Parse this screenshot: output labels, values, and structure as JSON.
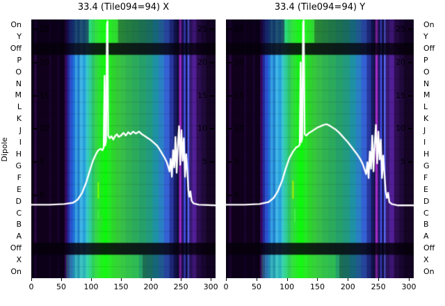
{
  "colors": {
    "background": "#ffffff",
    "text": "#000000",
    "overlay_line": "#ffffff"
  },
  "axes": {
    "ylabel": "Dipole",
    "dipole_labels": [
      "On",
      "Y",
      "Off",
      "P",
      "O",
      "N",
      "M",
      "L",
      "K",
      "J",
      "I",
      "H",
      "G",
      "F",
      "E",
      "D",
      "C",
      "B",
      "A",
      "Off",
      "X",
      "On"
    ],
    "x_ticks": [
      0,
      50,
      100,
      150,
      200,
      250,
      300
    ],
    "amp_ticks": [
      25,
      20,
      15,
      10,
      5,
      0
    ],
    "amp_ticks_right": [
      25,
      20,
      15,
      10,
      5
    ],
    "x_range": [
      0,
      308
    ],
    "amp_axis_range": [
      -12.5,
      26.5
    ]
  },
  "chart_data": [
    {
      "type": "heatmap",
      "title": "33.4 (Tile094=94) X",
      "rows": [
        "On",
        "Y",
        "Off",
        "P",
        "O",
        "N",
        "M",
        "L",
        "K",
        "J",
        "I",
        "H",
        "G",
        "F",
        "E",
        "D",
        "C",
        "B",
        "A",
        "Off",
        "X",
        "On"
      ],
      "x_ticks": [
        0,
        50,
        100,
        150,
        200,
        250,
        300
      ],
      "value_ticks": [
        25,
        20,
        15,
        10,
        5,
        0
      ],
      "off_rows": [
        2,
        19
      ],
      "colormap_columns": [
        [
          0,
          5,
          "#0d0016"
        ],
        [
          5,
          9,
          "#2a0742"
        ],
        [
          9,
          30,
          "#10001c"
        ],
        [
          30,
          33,
          "#1c0430"
        ],
        [
          33,
          44,
          "#10001c"
        ],
        [
          44,
          47,
          "#1a0430"
        ],
        [
          47,
          56,
          "#0e001a"
        ],
        [
          56,
          60,
          "#35075e"
        ],
        [
          60,
          64,
          "#232a9a"
        ],
        [
          64,
          69,
          "#2b50cc"
        ],
        [
          69,
          73,
          "#1f70d8"
        ],
        [
          73,
          77,
          "#38a0e0"
        ],
        [
          77,
          81,
          "#2080d0"
        ],
        [
          81,
          86,
          "#40b4e4"
        ],
        [
          86,
          91,
          "#28a0dc"
        ],
        [
          91,
          96,
          "#38c8c8"
        ],
        [
          96,
          101,
          "#30cc9a"
        ],
        [
          101,
          106,
          "#2cc468"
        ],
        [
          106,
          111,
          "#34d648"
        ],
        [
          111,
          116,
          "#28e430"
        ],
        [
          116,
          121,
          "#18ee18"
        ],
        [
          121,
          127,
          "#0cf60c"
        ],
        [
          127,
          134,
          "#22e822"
        ],
        [
          134,
          141,
          "#2cd42c"
        ],
        [
          141,
          149,
          "#34c83a"
        ],
        [
          149,
          158,
          "#36bc48"
        ],
        [
          158,
          168,
          "#30b252"
        ],
        [
          168,
          180,
          "#2caa5c"
        ],
        [
          180,
          192,
          "#26a06a"
        ],
        [
          192,
          203,
          "#229a80"
        ],
        [
          203,
          213,
          "#1e92a4"
        ],
        [
          213,
          222,
          "#2a80c4"
        ],
        [
          222,
          231,
          "#3462d4"
        ],
        [
          231,
          238,
          "#2838a0"
        ],
        [
          238,
          243,
          "#161a60"
        ],
        [
          243,
          247,
          "#0e0e3e"
        ],
        [
          247,
          251,
          "#9c28c0"
        ],
        [
          251,
          255,
          "#241668"
        ],
        [
          255,
          258,
          "#4452e8"
        ],
        [
          258,
          261,
          "#120e46"
        ],
        [
          261,
          264,
          "#5866f0"
        ],
        [
          264,
          269,
          "#381a74"
        ],
        [
          269,
          276,
          "#521f96"
        ],
        [
          276,
          284,
          "#2e0d52"
        ],
        [
          284,
          292,
          "#200a3c"
        ],
        [
          292,
          308,
          "#150424"
        ]
      ],
      "dim_overlays": [
        {
          "rows": [
            0,
            1
          ],
          "alpha": 0.55,
          "x_ranges": [
            [
              0,
              96
            ]
          ]
        },
        {
          "rows": [
            0,
            1
          ],
          "alpha": 0.3,
          "x_ranges": [
            [
              145,
              308
            ]
          ]
        },
        {
          "rows": [
            20,
            21
          ],
          "alpha": 0.5,
          "x_ranges": [
            [
              0,
              55
            ]
          ]
        },
        {
          "rows": [
            20,
            21
          ],
          "alpha": 0.3,
          "x_ranges": [
            [
              186,
              308
            ]
          ]
        }
      ],
      "bright_overlays": [
        {
          "rows": [
            0,
            1
          ],
          "color": "rgba(40,255,40,0.25)",
          "x_ranges": [
            [
              96,
              145
            ]
          ]
        },
        {
          "rows": [
            20,
            21
          ],
          "color": "rgba(60,255,50,0.20)",
          "x_ranges": [
            [
              58,
              180
            ]
          ]
        }
      ],
      "green_marks": [
        [
          112,
          -0.5,
          2.0,
          "#7fff00"
        ],
        [
          112,
          -3.6,
          -2.2,
          "#44ee44"
        ],
        [
          117,
          -4.6,
          -3.0,
          "#33dd33"
        ]
      ],
      "overlay_line": {
        "name": "bandpass amplitude X",
        "color": "#ffffff",
        "points": [
          [
            0,
            -1.4
          ],
          [
            30,
            -1.4
          ],
          [
            55,
            -1.3
          ],
          [
            70,
            -1.1
          ],
          [
            78,
            -0.6
          ],
          [
            85,
            0.4
          ],
          [
            92,
            2.0
          ],
          [
            98,
            3.8
          ],
          [
            103,
            5.2
          ],
          [
            108,
            6.2
          ],
          [
            112,
            6.8
          ],
          [
            116,
            7.0
          ],
          [
            119,
            6.8
          ],
          [
            121,
            7.2
          ],
          [
            122.5,
            18.0
          ],
          [
            123.5,
            7.5
          ],
          [
            125,
            8.2
          ],
          [
            126.5,
            25.8
          ],
          [
            127.5,
            26.2
          ],
          [
            128.5,
            9.0
          ],
          [
            131,
            8.6
          ],
          [
            134,
            8.9
          ],
          [
            137,
            8.4
          ],
          [
            140,
            8.9
          ],
          [
            143,
            9.2
          ],
          [
            146,
            8.8
          ],
          [
            150,
            9.0
          ],
          [
            154,
            9.4
          ],
          [
            158,
            9.0
          ],
          [
            162,
            9.5
          ],
          [
            166,
            9.2
          ],
          [
            170,
            9.6
          ],
          [
            175,
            9.3
          ],
          [
            180,
            9.6
          ],
          [
            185,
            9.2
          ],
          [
            190,
            8.9
          ],
          [
            195,
            8.6
          ],
          [
            200,
            8.3
          ],
          [
            205,
            7.9
          ],
          [
            210,
            7.5
          ],
          [
            214,
            7.0
          ],
          [
            218,
            6.4
          ],
          [
            222,
            5.8
          ],
          [
            226,
            5.1
          ],
          [
            229,
            4.3
          ],
          [
            231,
            3.6
          ],
          [
            233,
            5.5
          ],
          [
            235,
            2.8
          ],
          [
            237,
            6.8
          ],
          [
            239,
            4.2
          ],
          [
            241,
            8.8
          ],
          [
            243,
            3.4
          ],
          [
            245,
            7.6
          ],
          [
            247,
            10.4
          ],
          [
            249,
            4.6
          ],
          [
            251,
            9.8
          ],
          [
            253,
            5.2
          ],
          [
            255,
            8.6
          ],
          [
            257,
            2.8
          ],
          [
            259,
            6.2
          ],
          [
            261,
            3.4
          ],
          [
            262.5,
            0.8
          ],
          [
            264,
            -0.2
          ],
          [
            266,
            0.6
          ],
          [
            268,
            -0.8
          ],
          [
            271,
            -1.2
          ],
          [
            280,
            -1.4
          ],
          [
            308,
            -1.5
          ]
        ]
      }
    },
    {
      "type": "heatmap",
      "title": "33.4 (Tile094=94) Y",
      "rows": [
        "On",
        "Y",
        "Off",
        "P",
        "O",
        "N",
        "M",
        "L",
        "K",
        "J",
        "I",
        "H",
        "G",
        "F",
        "E",
        "D",
        "C",
        "B",
        "A",
        "Off",
        "X",
        "On"
      ],
      "x_ticks": [
        0,
        50,
        100,
        150,
        200,
        250,
        300
      ],
      "value_ticks": [
        25,
        20,
        15,
        10,
        5,
        0
      ],
      "off_rows": [
        2,
        19
      ],
      "colormap_columns": [
        [
          0,
          5,
          "#0d0016"
        ],
        [
          5,
          9,
          "#2a0742"
        ],
        [
          9,
          30,
          "#10001c"
        ],
        [
          30,
          33,
          "#1c0430"
        ],
        [
          33,
          44,
          "#10001c"
        ],
        [
          44,
          47,
          "#1a0430"
        ],
        [
          47,
          56,
          "#0e001a"
        ],
        [
          56,
          60,
          "#35075e"
        ],
        [
          60,
          64,
          "#232a9a"
        ],
        [
          64,
          69,
          "#2b50cc"
        ],
        [
          69,
          73,
          "#1f70d8"
        ],
        [
          73,
          77,
          "#38a0e0"
        ],
        [
          77,
          81,
          "#2080d0"
        ],
        [
          81,
          86,
          "#40b4e4"
        ],
        [
          86,
          91,
          "#28a0dc"
        ],
        [
          91,
          96,
          "#38c8c8"
        ],
        [
          96,
          101,
          "#30cc9a"
        ],
        [
          101,
          106,
          "#2cc468"
        ],
        [
          106,
          111,
          "#34d648"
        ],
        [
          111,
          116,
          "#28e430"
        ],
        [
          116,
          121,
          "#18ee18"
        ],
        [
          121,
          127,
          "#0cf60c"
        ],
        [
          127,
          134,
          "#22e822"
        ],
        [
          134,
          141,
          "#2cd42c"
        ],
        [
          141,
          149,
          "#34c83a"
        ],
        [
          149,
          158,
          "#36bc48"
        ],
        [
          158,
          168,
          "#30b252"
        ],
        [
          168,
          180,
          "#2caa5c"
        ],
        [
          180,
          192,
          "#26a06a"
        ],
        [
          192,
          203,
          "#229a80"
        ],
        [
          203,
          213,
          "#1e92a4"
        ],
        [
          213,
          222,
          "#2a80c4"
        ],
        [
          222,
          231,
          "#3462d4"
        ],
        [
          231,
          238,
          "#2838a0"
        ],
        [
          238,
          243,
          "#161a60"
        ],
        [
          243,
          245,
          "#0e0e3e"
        ],
        [
          245,
          249,
          "#a32cc4"
        ],
        [
          249,
          253,
          "#241668"
        ],
        [
          253,
          256,
          "#4452e8"
        ],
        [
          256,
          259,
          "#120e46"
        ],
        [
          259,
          262,
          "#5866f0"
        ],
        [
          262,
          268,
          "#381a74"
        ],
        [
          268,
          276,
          "#521f96"
        ],
        [
          276,
          284,
          "#2e0d52"
        ],
        [
          284,
          292,
          "#200a3c"
        ],
        [
          292,
          308,
          "#150424"
        ]
      ],
      "dim_overlays": [
        {
          "rows": [
            0,
            1
          ],
          "alpha": 0.55,
          "x_ranges": [
            [
              0,
              96
            ]
          ]
        },
        {
          "rows": [
            0,
            1
          ],
          "alpha": 0.3,
          "x_ranges": [
            [
              145,
              308
            ]
          ]
        },
        {
          "rows": [
            20,
            21
          ],
          "alpha": 0.5,
          "x_ranges": [
            [
              0,
              55
            ]
          ]
        },
        {
          "rows": [
            20,
            21
          ],
          "alpha": 0.3,
          "x_ranges": [
            [
              186,
              308
            ]
          ]
        }
      ],
      "bright_overlays": [
        {
          "rows": [
            0,
            1
          ],
          "color": "rgba(40,255,40,0.25)",
          "x_ranges": [
            [
              96,
              145
            ]
          ]
        },
        {
          "rows": [
            20,
            21
          ],
          "color": "rgba(60,255,50,0.20)",
          "x_ranges": [
            [
              58,
              180
            ]
          ]
        }
      ],
      "green_marks": [
        [
          110,
          -0.5,
          2.2,
          "#aaee00"
        ],
        [
          113,
          -4.0,
          -2.0,
          "#44ee44"
        ]
      ],
      "overlay_line": {
        "name": "bandpass amplitude Y",
        "color": "#ffffff",
        "points": [
          [
            0,
            -1.4
          ],
          [
            30,
            -1.4
          ],
          [
            55,
            -1.3
          ],
          [
            70,
            -1.0
          ],
          [
            78,
            -0.4
          ],
          [
            85,
            0.6
          ],
          [
            92,
            2.2
          ],
          [
            98,
            4.0
          ],
          [
            104,
            5.6
          ],
          [
            110,
            6.6
          ],
          [
            115,
            7.2
          ],
          [
            119,
            7.4
          ],
          [
            121,
            7.6
          ],
          [
            122.5,
            20.0
          ],
          [
            123.5,
            8.0
          ],
          [
            125,
            8.6
          ],
          [
            126.5,
            26.0
          ],
          [
            127.5,
            26.3
          ],
          [
            129,
            9.2
          ],
          [
            132,
            9.0
          ],
          [
            136,
            9.4
          ],
          [
            140,
            9.6
          ],
          [
            145,
            9.9
          ],
          [
            150,
            10.2
          ],
          [
            155,
            10.4
          ],
          [
            160,
            10.6
          ],
          [
            165,
            10.7
          ],
          [
            170,
            10.5
          ],
          [
            175,
            10.2
          ],
          [
            180,
            9.9
          ],
          [
            185,
            9.5
          ],
          [
            190,
            9.0
          ],
          [
            195,
            8.5
          ],
          [
            200,
            8.0
          ],
          [
            205,
            7.4
          ],
          [
            210,
            6.8
          ],
          [
            215,
            6.2
          ],
          [
            220,
            5.5
          ],
          [
            224,
            4.8
          ],
          [
            227,
            4.0
          ],
          [
            230,
            3.2
          ],
          [
            232,
            5.0
          ],
          [
            234,
            2.6
          ],
          [
            236,
            6.6
          ],
          [
            238,
            4.0
          ],
          [
            240,
            9.0
          ],
          [
            242,
            3.6
          ],
          [
            244,
            7.8
          ],
          [
            246,
            10.6
          ],
          [
            248,
            4.8
          ],
          [
            250,
            9.6
          ],
          [
            252,
            5.4
          ],
          [
            254,
            8.4
          ],
          [
            256,
            2.6
          ],
          [
            258,
            6.0
          ],
          [
            260,
            3.2
          ],
          [
            262,
            0.6
          ],
          [
            264,
            -0.4
          ],
          [
            266,
            0.4
          ],
          [
            268,
            -1.0
          ],
          [
            272,
            -1.3
          ],
          [
            282,
            -1.5
          ],
          [
            308,
            -1.5
          ]
        ]
      }
    }
  ]
}
